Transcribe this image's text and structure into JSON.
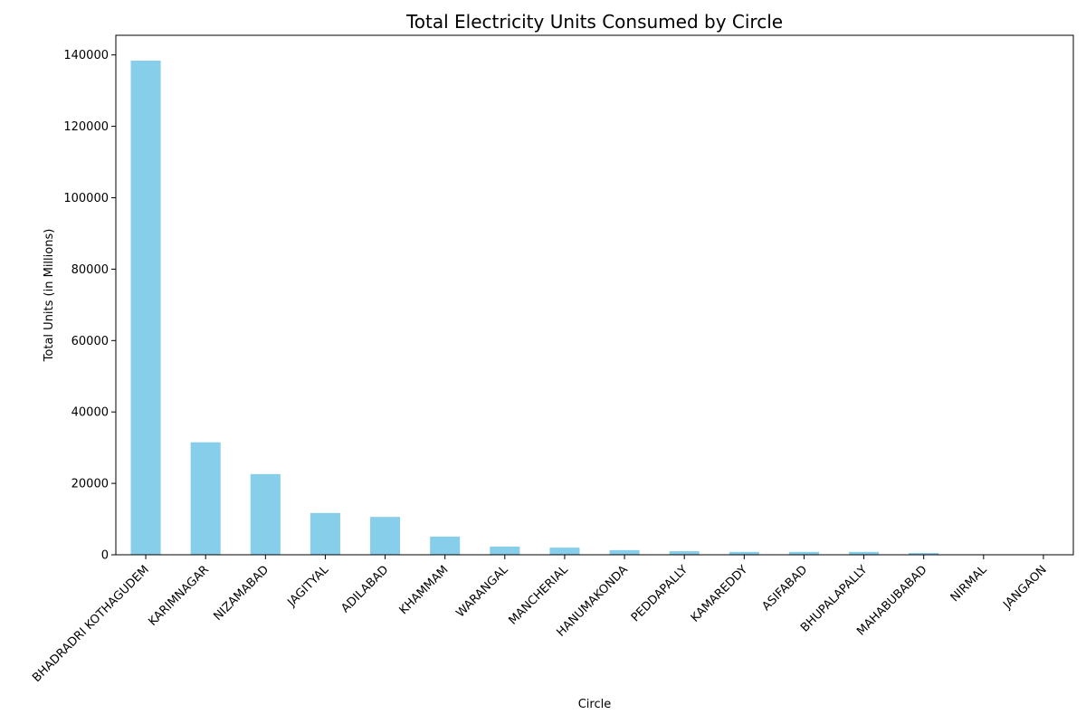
{
  "chart_data": {
    "type": "bar",
    "title": "Total Electricity Units Consumed by Circle",
    "xlabel": "Circle",
    "ylabel": "Total Units (in Millions)",
    "categories": [
      "BHADRADRI KOTHAGUDEM",
      "KARIMNAGAR",
      "NIZAMABAD",
      "JAGITYAL",
      "ADILABAD",
      "KHAMMAM",
      "WARANGAL",
      "MANCHERIAL",
      "HANUMAKONDA",
      "PEDDAPALLY",
      "KAMAREDDY",
      "ASIFABAD",
      "BHUPALAPALLY",
      "MAHABUBABAD",
      "NIRMAL",
      "JANGAON"
    ],
    "values": [
      138400,
      31500,
      22600,
      11700,
      10600,
      5100,
      2300,
      2000,
      1300,
      1000,
      800,
      800,
      800,
      500,
      0,
      0
    ],
    "ylim": [
      0,
      145500
    ],
    "yticks": [
      0,
      20000,
      40000,
      60000,
      80000,
      100000,
      120000,
      140000
    ],
    "grid": false,
    "bar_color": "#87ceeb"
  }
}
